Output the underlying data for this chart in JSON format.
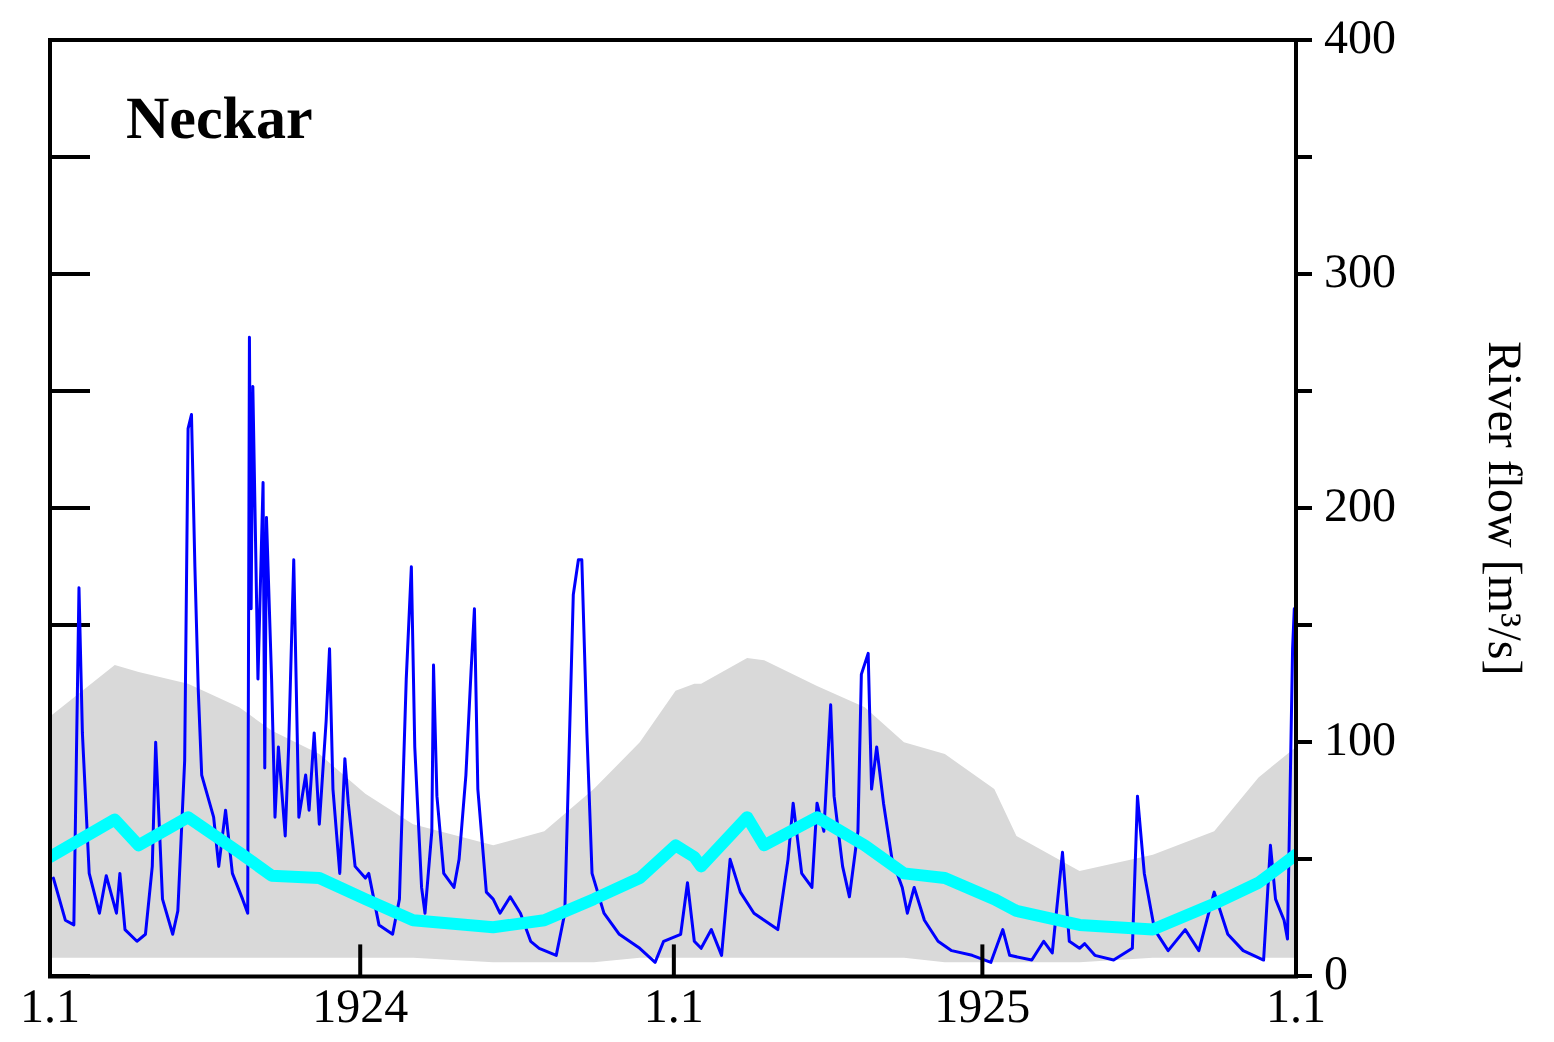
{
  "chart_data": {
    "type": "line",
    "title": "Neckar",
    "ylabel": "River flow [m³/s]",
    "xlim": [
      "1924-01-01",
      "1926-01-01"
    ],
    "xticks": [
      {
        "value": "1924-01-01",
        "label": "1.1"
      },
      {
        "value": "1924-07-01",
        "label": "1924"
      },
      {
        "value": "1925-01-01",
        "label": "1.1"
      },
      {
        "value": "1925-07-01",
        "label": "1925"
      },
      {
        "value": "1926-01-01",
        "label": "1.1"
      }
    ],
    "ylim": [
      0,
      400
    ],
    "yticks": [
      0,
      {
        "value": 50,
        "label": null
      },
      100,
      {
        "value": 150,
        "label": null
      },
      200,
      {
        "value": 250,
        "label": null
      },
      300,
      {
        "value": 350,
        "label": null
      },
      400
    ],
    "series": [
      {
        "color": "#0000ff",
        "x": [
          "1924-01-03",
          "1924-01-10",
          "1924-01-15",
          "1924-01-18",
          "1924-01-20",
          "1924-01-24",
          "1924-01-30",
          "1924-02-03",
          "1924-02-09",
          "1924-02-11",
          "1924-02-14",
          "1924-02-21",
          "1924-02-26",
          "1924-03-01",
          "1924-03-03",
          "1924-03-07",
          "1924-03-13",
          "1924-03-16",
          "1924-03-20",
          "1924-03-22",
          "1924-03-24",
          "1924-03-26",
          "1924-03-28",
          "1924-03-30",
          "1924-04-06",
          "1924-04-09",
          "1924-04-13",
          "1924-04-17",
          "1924-04-23",
          "1924-04-26",
          "1924-04-27",
          "1924-04-28",
          "1924-04-29",
          "1924-05-02",
          "1924-05-05",
          "1924-05-06",
          "1924-05-07",
          "1924-05-10",
          "1924-05-12",
          "1924-05-14",
          "1924-05-18",
          "1924-05-20",
          "1924-05-23",
          "1924-05-26",
          "1924-05-30",
          "1924-06-01",
          "1924-06-04",
          "1924-06-07",
          "1924-06-11",
          "1924-06-13",
          "1924-06-15",
          "1924-06-19",
          "1924-06-22",
          "1924-06-24",
          "1924-06-28",
          "1924-07-04",
          "1924-07-06",
          "1924-07-12",
          "1924-07-20",
          "1924-07-24",
          "1924-07-28",
          "1924-07-31",
          "1924-08-02",
          "1924-08-06",
          "1924-08-08",
          "1924-08-12",
          "1924-08-13",
          "1924-08-15",
          "1924-08-19",
          "1924-08-25",
          "1924-08-28",
          "1924-09-01",
          "1924-09-04",
          "1924-09-06",
          "1924-09-08",
          "1924-09-13",
          "1924-09-17",
          "1924-09-21",
          "1924-09-27",
          "1924-10-03",
          "1924-10-09",
          "1924-10-14",
          "1924-10-24",
          "1924-10-29",
          "1924-11-03",
          "1924-11-06",
          "1924-11-08",
          "1924-11-11",
          "1924-11-14",
          "1924-11-21",
          "1924-11-30",
          "1924-12-12",
          "1924-12-21",
          "1924-12-26",
          "1925-01-05",
          "1925-01-09",
          "1925-01-13",
          "1925-01-17",
          "1925-01-23",
          "1925-01-29",
          "1925-02-03",
          "1925-02-09",
          "1925-02-17",
          "1925-02-23",
          "1925-03-03",
          "1925-03-09",
          "1925-03-12",
          "1925-03-17",
          "1925-03-23",
          "1925-03-26",
          "1925-03-30",
          "1925-04-03",
          "1925-04-05",
          "1925-04-10",
          "1925-04-14",
          "1925-04-19",
          "1925-04-21",
          "1925-04-25",
          "1925-04-27",
          "1925-04-30",
          "1925-05-04",
          "1925-05-09",
          "1925-05-15",
          "1925-05-18",
          "1925-05-22",
          "1925-05-28",
          "1925-06-05",
          "1925-06-13",
          "1925-06-25",
          "1925-07-06",
          "1925-07-13",
          "1925-07-17",
          "1925-07-30",
          "1925-08-06",
          "1925-08-11",
          "1925-08-17",
          "1925-08-21",
          "1925-08-27",
          "1925-08-30",
          "1925-09-05",
          "1925-09-16",
          "1925-09-27",
          "1925-09-30",
          "1925-10-04",
          "1925-10-10",
          "1925-10-18",
          "1925-10-28",
          "1925-11-05",
          "1925-11-14",
          "1925-11-22",
          "1925-12-01",
          "1925-12-13",
          "1925-12-17",
          "1925-12-20",
          "1925-12-25",
          "1925-12-27",
          "1925-12-30",
          "1925-12-31"
        ],
        "values": [
          42,
          24,
          22,
          166,
          104,
          44,
          27,
          43,
          27,
          44,
          20,
          15,
          18,
          47,
          100,
          33,
          18,
          28,
          92,
          234,
          240,
          175,
          122,
          86,
          68,
          47,
          71,
          44,
          33,
          27,
          273,
          157,
          252,
          127,
          211,
          89,
          196,
          127,
          68,
          98,
          60,
          98,
          178,
          68,
          86,
          71,
          104,
          65,
          109,
          140,
          80,
          44,
          93,
          74,
          47,
          42,
          44,
          22,
          18,
          33,
          127,
          175,
          98,
          38,
          27,
          62,
          133,
          77,
          44,
          38,
          50,
          86,
          130,
          157,
          80,
          36,
          33,
          27,
          34,
          27,
          15,
          12,
          9,
          27,
          163,
          178,
          178,
          104,
          44,
          27,
          18,
          12,
          6,
          15,
          18,
          40,
          15,
          12,
          20,
          9,
          50,
          36,
          27,
          24,
          20,
          50,
          74,
          44,
          38,
          74,
          62,
          116,
          77,
          47,
          34,
          62,
          129,
          138,
          80,
          98,
          74,
          50,
          38,
          27,
          38,
          24,
          15,
          11,
          9,
          6,
          20,
          9,
          7,
          15,
          10,
          53,
          15,
          12,
          14,
          9,
          7,
          12,
          77,
          44,
          20,
          11,
          20,
          11,
          36,
          18,
          11,
          7,
          56,
          33,
          24,
          16,
          140,
          157
        ]
      },
      {
        "color": "#00ffff",
        "x": [
          "1924-01-01",
          "1924-02-08",
          "1924-02-22",
          "1924-03-22",
          "1924-04-21",
          "1924-05-10",
          "1924-06-07",
          "1924-07-04",
          "1924-08-01",
          "1924-09-17",
          "1924-10-17",
          "1924-11-15",
          "1924-12-12",
          "1925-01-02",
          "1925-01-13",
          "1925-01-17",
          "1925-02-13",
          "1925-02-23",
          "1925-03-26",
          "1925-04-23",
          "1925-05-16",
          "1925-06-09",
          "1925-07-08",
          "1925-07-21",
          "1925-08-27",
          "1925-10-09",
          "1925-11-14",
          "1925-12-10",
          "1926-01-01"
        ],
        "values": [
          51,
          67,
          56,
          68,
          53,
          43,
          42,
          33,
          24,
          21,
          24,
          33,
          42,
          56,
          51,
          47,
          68,
          56,
          68,
          56,
          44,
          42,
          33,
          28,
          22,
          20,
          31,
          40,
          52
        ],
        "lower": [
          8,
          8,
          8,
          8,
          8,
          8,
          8,
          8,
          8,
          6,
          6,
          6,
          8,
          8,
          8,
          8,
          8,
          8,
          8,
          8,
          8,
          6,
          6,
          6,
          6,
          8,
          8,
          8,
          8
        ],
        "upper": [
          111,
          133,
          130,
          125,
          115,
          105,
          95,
          78,
          65,
          56,
          62,
          80,
          100,
          122,
          125,
          125,
          136,
          135,
          124,
          115,
          100,
          95,
          80,
          60,
          45,
          52,
          62,
          85,
          98
        ]
      }
    ]
  }
}
